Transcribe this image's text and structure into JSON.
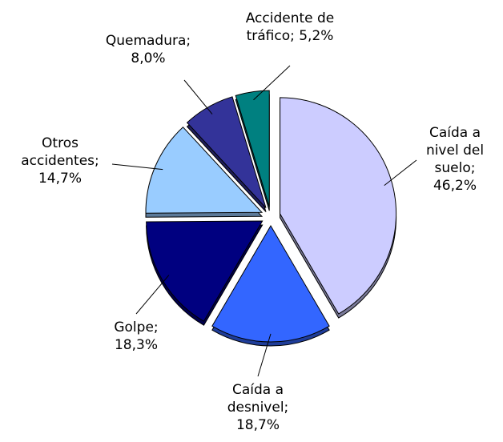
{
  "chart_data": {
    "type": "pie",
    "values": [
      46.2,
      18.7,
      18.3,
      14.7,
      8.0,
      5.2
    ],
    "value_labels": [
      "Caída a nivel del suelo; 46,2%",
      "Caída a desnivel; 18,7%",
      "Golpe; 18,3%",
      "Otros accidentes; 14,7%",
      "Quemadura; 8,0%",
      "Accidente de tráfico; 5,2%"
    ],
    "colors": [
      "#ccccff",
      "#3366ff",
      "#000080",
      "#99ccff",
      "#333399",
      "#008080"
    ]
  }
}
